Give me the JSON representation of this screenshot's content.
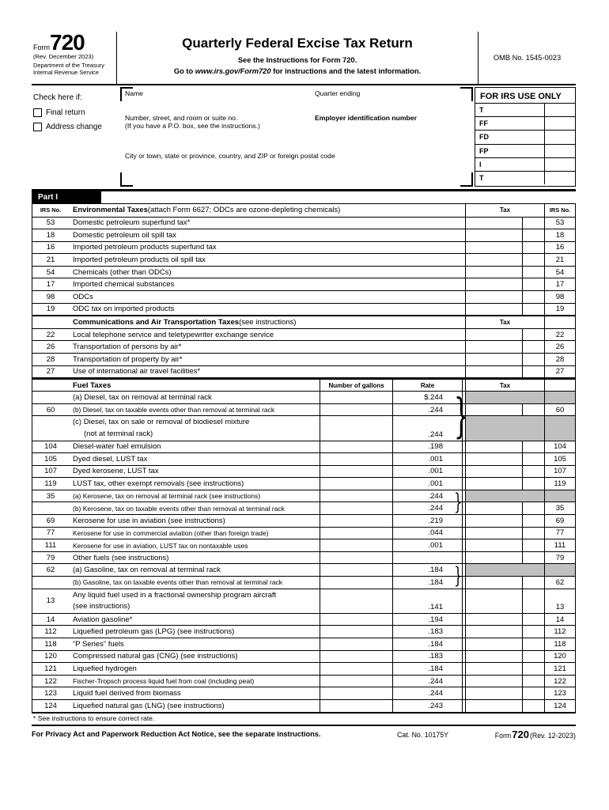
{
  "colors": {
    "gray_cell": "#c0c0c0",
    "bar_bg": "#000000"
  },
  "header": {
    "form_label": "Form",
    "form_number": "720",
    "rev": "(Rev. December 2023)",
    "dept_line1": "Department of the Treasury",
    "dept_line2": "Internal Revenue Service",
    "title": "Quarterly Federal Excise Tax Return",
    "subtitle": "See the Instructions for Form 720.",
    "goto_prefix": "Go to ",
    "goto_url": "www.irs.gov/Form720",
    "goto_suffix": " for instructions and the latest information.",
    "omb": "OMB No. 1545-0023"
  },
  "entity": {
    "check_here": "Check here if:",
    "final_return": "Final return",
    "address_change": "Address change",
    "name_label": "Name",
    "quarter_label": "Quarter ending",
    "street_label": "Number, street, and room or suite no.",
    "street_note": "(If you have a P.O. box, see the instructions.)",
    "ein_label": "Employer identification number",
    "city_label": "City or town, state or province, country, and ZIP or foreign postal code",
    "irs_use": {
      "title": "FOR IRS USE ONLY",
      "rows": [
        "T",
        "FF",
        "FD",
        "FP",
        "I",
        "T"
      ]
    }
  },
  "part1": {
    "label": "Part I",
    "rows": [
      {
        "kind": "env-header",
        "left": "IRS No.",
        "bold": "Environmental Taxes",
        "rest": " (attach Form 6627; ODCs are ozone-depleting chemicals)",
        "tax": "Tax",
        "right": "IRS No."
      },
      {
        "kind": "item",
        "no": "53",
        "text": "Domestic petroleum superfund tax*",
        "right": "53"
      },
      {
        "kind": "item",
        "no": "18",
        "text": "Domestic petroleum oil spill tax",
        "right": "18"
      },
      {
        "kind": "item",
        "no": "16",
        "text": "Imported petroleum products superfund tax",
        "right": "16"
      },
      {
        "kind": "item",
        "no": "21",
        "text": "Imported petroleum products oil spill tax",
        "right": "21"
      },
      {
        "kind": "item",
        "no": "54",
        "text": "Chemicals (other than ODCs)",
        "right": "54"
      },
      {
        "kind": "item",
        "no": "17",
        "text": "Imported chemical substances",
        "right": "17"
      },
      {
        "kind": "item",
        "no": "98",
        "text": "ODCs",
        "right": "98"
      },
      {
        "kind": "item",
        "no": "19",
        "text": "ODC tax on imported products",
        "right": "19"
      },
      {
        "kind": "comm-header",
        "bold": "Communications and Air Transportation Taxes",
        "rest": " (see instructions)",
        "tax": "Tax"
      },
      {
        "kind": "item",
        "no": "22",
        "text": "Local telephone service and teletypewriter exchange service",
        "right": "22"
      },
      {
        "kind": "item",
        "no": "26",
        "text": "Transportation of persons by air*",
        "right": "26"
      },
      {
        "kind": "item",
        "no": "28",
        "text": "Transportation of property by air*",
        "right": "28"
      },
      {
        "kind": "item",
        "no": "27",
        "text": "Use of international air travel facilities*",
        "right": "27"
      },
      {
        "kind": "fuel-header",
        "bold": "Fuel Taxes",
        "gallons": "Number of gallons",
        "rate": "Rate",
        "tax": "Tax"
      },
      {
        "kind": "fuel",
        "no": "",
        "text": "(a)  Diesel, tax on removal at terminal rack",
        "rate": "$.244",
        "gray": true,
        "brace": "b60"
      },
      {
        "kind": "fuel",
        "no": "60",
        "text": "(b)  Diesel, tax on taxable events other than removal at terminal rack",
        "rate": ".244",
        "right": "60"
      },
      {
        "kind": "fuel2",
        "no": "",
        "text": "(c)  Diesel, tax on sale or removal of biodiesel mixture",
        "text2": "(not at terminal rack)",
        "indent2": true,
        "rate": ".244",
        "gray": true
      },
      {
        "kind": "fuel",
        "no": "104",
        "text": "Diesel-water fuel emulsion",
        "rate": ".198",
        "right": "104"
      },
      {
        "kind": "fuel",
        "no": "105",
        "text": "Dyed diesel, LUST tax",
        "rate": ".001",
        "right": "105"
      },
      {
        "kind": "fuel",
        "no": "107",
        "text": "Dyed kerosene, LUST tax",
        "rate": ".001",
        "right": "107"
      },
      {
        "kind": "fuel",
        "no": "119",
        "text": "LUST tax, other exempt removals (see instructions)",
        "rate": ".001",
        "right": "119"
      },
      {
        "kind": "fuel",
        "no": "35",
        "text": "(a)  Kerosene, tax on removal at terminal rack (see instructions)",
        "rate": ".244",
        "gray": true,
        "brace": "b35"
      },
      {
        "kind": "fuel",
        "no": "",
        "text": "(b)  Kerosene, tax on taxable events other than removal at terminal rack",
        "rate": ".244",
        "right": "35"
      },
      {
        "kind": "fuel",
        "no": "69",
        "text": "Kerosene for use in aviation (see instructions)",
        "rate": ".219",
        "right": "69"
      },
      {
        "kind": "fuel",
        "no": "77",
        "text": "Kerosene for use in commercial aviation (other than foreign trade)",
        "rate": ".044",
        "right": "77"
      },
      {
        "kind": "fuel",
        "no": "111",
        "text": "Kerosene for use in aviation, LUST tax on nontaxable uses",
        "rate": ".001",
        "right": "111"
      },
      {
        "kind": "fuel",
        "no": "79",
        "text": "Other fuels (see instructions)",
        "rate": "",
        "right": "79"
      },
      {
        "kind": "fuel",
        "no": "62",
        "text": "(a)  Gasoline, tax on removal at terminal rack",
        "rate": ".184",
        "gray": true,
        "brace": "b62"
      },
      {
        "kind": "fuel",
        "no": "",
        "text": "(b)  Gasoline, tax on taxable events other than removal at terminal rack",
        "rate": ".184",
        "right": "62"
      },
      {
        "kind": "fuel2",
        "no": "13",
        "text": "Any liquid fuel used in a fractional ownership program aircraft",
        "text2": "(see instructions)",
        "indent2": false,
        "rate": ".141",
        "right": "13"
      },
      {
        "kind": "fuel",
        "no": "14",
        "text": "Aviation gasoline*",
        "rate": ".194",
        "right": "14"
      },
      {
        "kind": "fuel",
        "no": "112",
        "text": "Liquefied petroleum gas (LPG) (see instructions)",
        "rate": ".183",
        "right": "112"
      },
      {
        "kind": "fuel",
        "no": "118",
        "text": "“P Series” fuels",
        "rate": ".184",
        "right": "118"
      },
      {
        "kind": "fuel",
        "no": "120",
        "text": "Compressed natural gas (CNG) (see instructions)",
        "rate": ".183",
        "right": "120"
      },
      {
        "kind": "fuel",
        "no": "121",
        "text": "Liquefied hydrogen",
        "rate": ".184",
        "right": "121"
      },
      {
        "kind": "fuel",
        "no": "122",
        "text": "Fischer-Tropsch process liquid fuel from coal (including peat)",
        "rate": ".244",
        "right": "122"
      },
      {
        "kind": "fuel",
        "no": "123",
        "text": "Liquid fuel derived from biomass",
        "rate": ".244",
        "right": "123"
      },
      {
        "kind": "fuel",
        "no": "124",
        "text": "Liquefied natural gas (LNG) (see instructions)",
        "rate": ".243",
        "right": "124"
      }
    ],
    "brace_glyph": "}"
  },
  "footer": {
    "rate_note": "* See instructions to ensure correct rate.",
    "privacy": "For Privacy Act and Paperwork Reduction Act Notice, see the separate instructions.",
    "cat": "Cat. No. 10175Y",
    "form_pre": "Form",
    "form_no": "720",
    "form_rev": "(Rev. 12-2023)"
  }
}
